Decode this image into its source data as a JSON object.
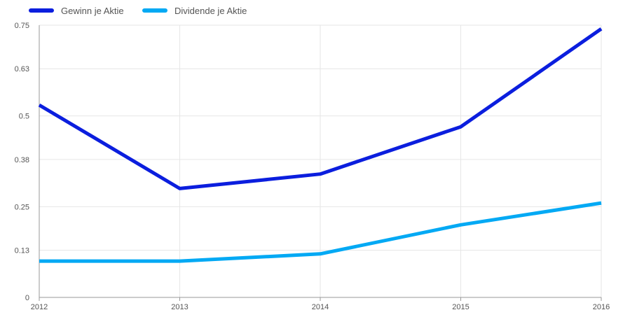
{
  "chart_data": {
    "type": "line",
    "title": "",
    "xlabel": "",
    "ylabel": "",
    "categories": [
      "2012",
      "2013",
      "2014",
      "2015",
      "2016"
    ],
    "y_ticks": [
      "0",
      "0.13",
      "0.25",
      "0.38",
      "0.5",
      "0.63",
      "0.75"
    ],
    "ylim": [
      0,
      0.75
    ],
    "grid": true,
    "legend_position": "top-left",
    "series": [
      {
        "name": "Gewinn je Aktie",
        "color": "#0b1ede",
        "values": [
          0.53,
          0.3,
          0.34,
          0.47,
          0.74
        ]
      },
      {
        "name": "Dividende je Aktie",
        "color": "#03a9f4",
        "values": [
          0.1,
          0.1,
          0.12,
          0.2,
          0.26
        ]
      }
    ]
  }
}
